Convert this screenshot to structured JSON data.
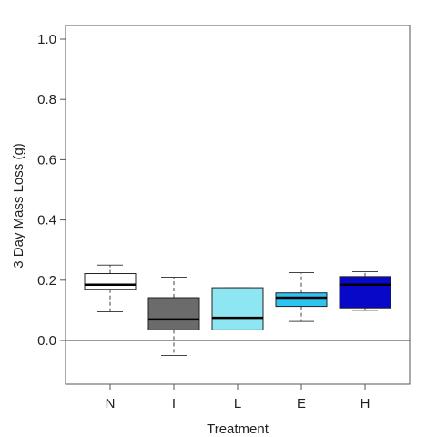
{
  "chart_data": {
    "type": "box",
    "title": "",
    "xlabel": "Treatment",
    "ylabel": "3 Day Mass Loss (g)",
    "ylim": [
      -0.15,
      1.0
    ],
    "yticks": [
      "0.0",
      "0.2",
      "0.4",
      "0.6",
      "0.8",
      "1.0"
    ],
    "ytick_values": [
      0.0,
      0.2,
      0.4,
      0.6,
      0.8,
      1.0
    ],
    "reference_line": 0.0,
    "grid": false,
    "legend": "none",
    "categories": [
      "N",
      "I",
      "L",
      "E",
      "H"
    ],
    "boxes": [
      {
        "category": "N",
        "min": 0.095,
        "q1": 0.17,
        "median": 0.185,
        "q3": 0.222,
        "max": 0.25,
        "color": "#ffffff"
      },
      {
        "category": "I",
        "min": -0.05,
        "q1": 0.035,
        "median": 0.07,
        "q3": 0.142,
        "max": 0.21,
        "color": "#6b6b6b"
      },
      {
        "category": "L",
        "min": 0.035,
        "q1": 0.035,
        "median": 0.075,
        "q3": 0.175,
        "max": 0.175,
        "color": "#8de6f2"
      },
      {
        "category": "E",
        "min": 0.063,
        "q1": 0.113,
        "median": 0.142,
        "q3": 0.158,
        "max": 0.225,
        "color": "#2ec4f0"
      },
      {
        "category": "H",
        "min": 0.1,
        "q1": 0.108,
        "median": 0.185,
        "q3": 0.212,
        "max": 0.228,
        "color": "#0808c8"
      }
    ]
  }
}
